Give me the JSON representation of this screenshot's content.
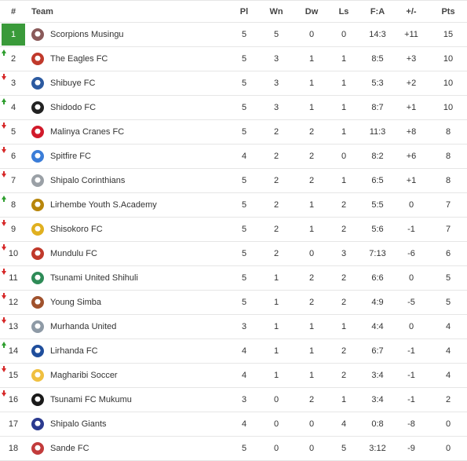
{
  "header": {
    "pos": "#",
    "team": "Team",
    "pl": "Pl",
    "wn": "Wn",
    "dw": "Dw",
    "ls": "Ls",
    "fa": "F:A",
    "gd": "+/-",
    "pts": "Pts"
  },
  "colors": {
    "leader": "#3a9a3a",
    "up_arrow": "#2e9e2e",
    "down_arrow": "#d62828"
  },
  "rows": [
    {
      "pos": "1",
      "team": "Scorpions Musingu",
      "pl": "5",
      "wn": "5",
      "dw": "0",
      "ls": "0",
      "fa": "14:3",
      "gd": "+11",
      "pts": "15",
      "trend": "none",
      "crest": "#8a5a5a",
      "crest_icon": "scorpions-crest-icon"
    },
    {
      "pos": "2",
      "team": "The Eagles FC",
      "pl": "5",
      "wn": "3",
      "dw": "1",
      "ls": "1",
      "fa": "8:5",
      "gd": "+3",
      "pts": "10",
      "trend": "up",
      "crest": "#c0392b",
      "crest_icon": "eagles-crest-icon"
    },
    {
      "pos": "3",
      "team": "Shibuye FC",
      "pl": "5",
      "wn": "3",
      "dw": "1",
      "ls": "1",
      "fa": "5:3",
      "gd": "+2",
      "pts": "10",
      "trend": "down",
      "crest": "#2c5aa0",
      "crest_icon": "shibuye-crest-icon"
    },
    {
      "pos": "4",
      "team": "Shidodo FC",
      "pl": "5",
      "wn": "3",
      "dw": "1",
      "ls": "1",
      "fa": "8:7",
      "gd": "+1",
      "pts": "10",
      "trend": "up",
      "crest": "#222222",
      "crest_icon": "shidodo-crest-icon"
    },
    {
      "pos": "5",
      "team": "Malinya Cranes FC",
      "pl": "5",
      "wn": "2",
      "dw": "2",
      "ls": "1",
      "fa": "11:3",
      "gd": "+8",
      "pts": "8",
      "trend": "down",
      "crest": "#d11a2a",
      "crest_icon": "malinya-crest-icon"
    },
    {
      "pos": "6",
      "team": "Spitfire FC",
      "pl": "4",
      "wn": "2",
      "dw": "2",
      "ls": "0",
      "fa": "8:2",
      "gd": "+6",
      "pts": "8",
      "trend": "down",
      "crest": "#3b7dd8",
      "crest_icon": "spitfire-crest-icon"
    },
    {
      "pos": "7",
      "team": "Shipalo Corinthians",
      "pl": "5",
      "wn": "2",
      "dw": "2",
      "ls": "1",
      "fa": "6:5",
      "gd": "+1",
      "pts": "8",
      "trend": "down",
      "crest": "#9aa0a6",
      "crest_icon": "shipalo-corinthians-crest-icon"
    },
    {
      "pos": "8",
      "team": "Lirhembe Youth S.Academy",
      "pl": "5",
      "wn": "2",
      "dw": "1",
      "ls": "2",
      "fa": "5:5",
      "gd": "0",
      "pts": "7",
      "trend": "up",
      "crest": "#b8860b",
      "crest_icon": "lirhembe-crest-icon"
    },
    {
      "pos": "9",
      "team": "Shisokoro FC",
      "pl": "5",
      "wn": "2",
      "dw": "1",
      "ls": "2",
      "fa": "5:6",
      "gd": "-1",
      "pts": "7",
      "trend": "down",
      "crest": "#e0b020",
      "crest_icon": "shisokoro-crest-icon"
    },
    {
      "pos": "10",
      "team": "Mundulu FC",
      "pl": "5",
      "wn": "2",
      "dw": "0",
      "ls": "3",
      "fa": "7:13",
      "gd": "-6",
      "pts": "6",
      "trend": "down",
      "crest": "#c0392b",
      "crest_icon": "mundulu-crest-icon"
    },
    {
      "pos": "11",
      "team": "Tsunami United Shihuli",
      "pl": "5",
      "wn": "1",
      "dw": "2",
      "ls": "2",
      "fa": "6:6",
      "gd": "0",
      "pts": "5",
      "trend": "down",
      "crest": "#2e8b57",
      "crest_icon": "tsunami-united-crest-icon"
    },
    {
      "pos": "12",
      "team": "Young Simba",
      "pl": "5",
      "wn": "1",
      "dw": "2",
      "ls": "2",
      "fa": "4:9",
      "gd": "-5",
      "pts": "5",
      "trend": "down",
      "crest": "#a0522d",
      "crest_icon": "young-simba-crest-icon"
    },
    {
      "pos": "13",
      "team": "Murhanda United",
      "pl": "3",
      "wn": "1",
      "dw": "1",
      "ls": "1",
      "fa": "4:4",
      "gd": "0",
      "pts": "4",
      "trend": "down",
      "crest": "#8e9aa6",
      "crest_icon": "murhanda-crest-icon"
    },
    {
      "pos": "14",
      "team": "Lirhanda FC",
      "pl": "4",
      "wn": "1",
      "dw": "1",
      "ls": "2",
      "fa": "6:7",
      "gd": "-1",
      "pts": "4",
      "trend": "up",
      "crest": "#1f4e9c",
      "crest_icon": "lirhanda-crest-icon"
    },
    {
      "pos": "15",
      "team": "Magharibi Soccer",
      "pl": "4",
      "wn": "1",
      "dw": "1",
      "ls": "2",
      "fa": "3:4",
      "gd": "-1",
      "pts": "4",
      "trend": "down",
      "crest": "#f0c040",
      "crest_icon": "magharibi-crest-icon"
    },
    {
      "pos": "16",
      "team": "Tsunami FC Mukumu",
      "pl": "3",
      "wn": "0",
      "dw": "2",
      "ls": "1",
      "fa": "3:4",
      "gd": "-1",
      "pts": "2",
      "trend": "down",
      "crest": "#1a1a1a",
      "crest_icon": "tsunami-mukumu-crest-icon"
    },
    {
      "pos": "17",
      "team": "Shipalo Giants",
      "pl": "4",
      "wn": "0",
      "dw": "0",
      "ls": "4",
      "fa": "0:8",
      "gd": "-8",
      "pts": "0",
      "trend": "none",
      "crest": "#2b3a8f",
      "crest_icon": "shipalo-giants-crest-icon"
    },
    {
      "pos": "18",
      "team": "Sande FC",
      "pl": "5",
      "wn": "0",
      "dw": "0",
      "ls": "5",
      "fa": "3:12",
      "gd": "-9",
      "pts": "0",
      "trend": "none",
      "crest": "#c23b3b",
      "crest_icon": "sande-crest-icon"
    }
  ]
}
